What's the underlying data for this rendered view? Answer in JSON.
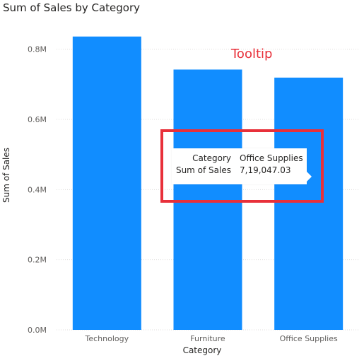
{
  "annotation": {
    "label": "Tooltip"
  },
  "tooltip": {
    "rows": [
      {
        "key": "Category",
        "value": "Office Supplies"
      },
      {
        "key": "Sum of Sales",
        "value": "7,19,047.03"
      }
    ]
  },
  "colors": {
    "bar": "#118dff",
    "annotation": "#e8303a",
    "highlight": "#e8303a",
    "text": "#252423",
    "axis_text": "#605e5c",
    "gridline": "#e1dfdd"
  },
  "chart_data": {
    "type": "bar",
    "title": "Sum of Sales by Category",
    "xlabel": "Category",
    "ylabel": "Sum of Sales",
    "categories": [
      "Technology",
      "Furniture",
      "Office Supplies"
    ],
    "values": [
      836154.03,
      741999.8,
      719047.03
    ],
    "ylim": [
      0,
      0.9
    ],
    "yticks": [
      {
        "value": 0.0,
        "label": "0.0M"
      },
      {
        "value": 0.2,
        "label": "0.2M"
      },
      {
        "value": 0.4,
        "label": "0.4M"
      },
      {
        "value": 0.6,
        "label": "0.6M"
      },
      {
        "value": 0.8,
        "label": "0.8M"
      }
    ],
    "grid": true,
    "legend": "none"
  }
}
